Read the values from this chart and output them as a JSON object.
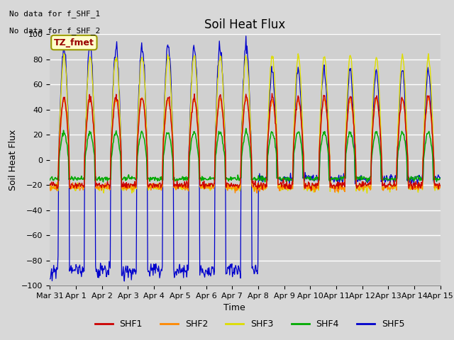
{
  "title": "Soil Heat Flux",
  "ylabel": "Soil Heat Flux",
  "xlabel": "Time",
  "ylim": [
    -100,
    100
  ],
  "xlim": [
    0,
    15
  ],
  "background_color": "#d8d8d8",
  "plot_bg_color": "#d0d0d0",
  "grid_color": "#ffffff",
  "annotation_text1": "No data for f_SHF_1",
  "annotation_text2": "No data for f_SHF_2",
  "legend_label": "TZ_fmet",
  "series_colors": [
    "#cc0000",
    "#ff8800",
    "#dddd00",
    "#00aa00",
    "#0000cc"
  ],
  "series_names": [
    "SHF1",
    "SHF2",
    "SHF3",
    "SHF4",
    "SHF5"
  ],
  "xtick_labels": [
    "Mar 31",
    "Apr 1",
    "Apr 2",
    "Apr 3",
    "Apr 4",
    "Apr 5",
    "Apr 6",
    "Apr 7",
    "Apr 8",
    "Apr 9",
    "Apr 10",
    "Apr 11",
    "Apr 12",
    "Apr 13",
    "Apr 14",
    "Apr 15"
  ],
  "num_days": 15,
  "pts_per_day": 48
}
